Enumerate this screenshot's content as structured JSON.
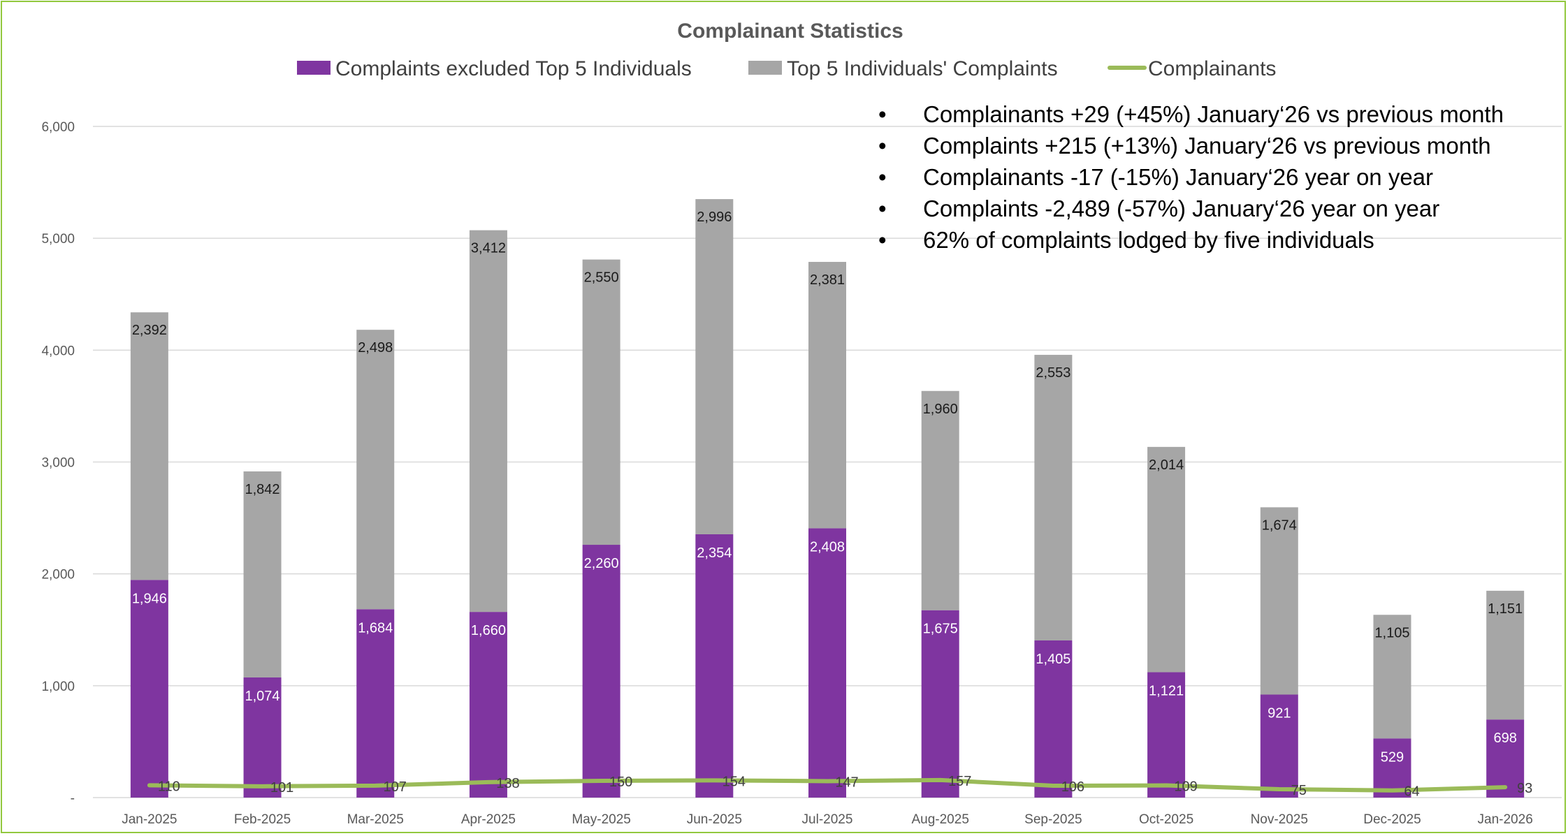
{
  "colors": {
    "excluded": "#7f35a0",
    "top5": "#a6a6a6",
    "complainants": "#9bbb59",
    "grid": "#d9d9d9",
    "frame": "#92c83e"
  },
  "chart_data": {
    "type": "bar",
    "stacked": true,
    "title": "Complainant Statistics",
    "categories": [
      "Jan-2025",
      "Feb-2025",
      "Mar-2025",
      "Apr-2025",
      "May-2025",
      "Jun-2025",
      "Jul-2025",
      "Aug-2025",
      "Sep-2025",
      "Oct-2025",
      "Nov-2025",
      "Dec-2025",
      "Jan-2026"
    ],
    "series": [
      {
        "name": "Complaints excluded Top 5 Individuals",
        "type": "bar",
        "values": [
          1946,
          1074,
          1684,
          1660,
          2260,
          2354,
          2408,
          1675,
          1405,
          1121,
          921,
          529,
          698
        ],
        "labels": [
          "1,946",
          "1,074",
          "1,684",
          "1,660",
          "2,260",
          "2,354",
          "2,408",
          "1,675",
          "1,405",
          "1,121",
          "921",
          "529",
          "698"
        ]
      },
      {
        "name": "Top 5 Individuals' Complaints",
        "type": "bar",
        "values": [
          2392,
          1842,
          2498,
          3412,
          2550,
          2996,
          2381,
          1960,
          2553,
          2014,
          1674,
          1105,
          1151
        ],
        "labels": [
          "2,392",
          "1,842",
          "2,498",
          "3,412",
          "2,550",
          "2,996",
          "2,381",
          "1,960",
          "2,553",
          "2,014",
          "1,674",
          "1,105",
          "1,151"
        ]
      },
      {
        "name": "Complainants",
        "type": "line",
        "values": [
          110,
          101,
          107,
          138,
          150,
          154,
          147,
          157,
          106,
          109,
          75,
          64,
          93
        ],
        "labels": [
          "110",
          "101",
          "107",
          "138",
          "150",
          "154",
          "147",
          "157",
          "106",
          "109",
          "75",
          "64",
          "93"
        ]
      }
    ],
    "ylim": [
      0,
      6000
    ],
    "yticks": [
      0,
      1000,
      2000,
      3000,
      4000,
      5000,
      6000
    ],
    "ytick_labels": [
      "-",
      "1,000",
      "2,000",
      "3,000",
      "4,000",
      "5,000",
      "6,000"
    ],
    "grid": true,
    "legend": "top-center",
    "annotations": [
      "Complainants +29 (+45%) January‘26 vs previous month",
      "Complaints +215 (+13%) January‘26 vs previous month",
      "Complainants -17 (-15%) January‘26 year on year",
      "Complaints -2,489 (-57%) January‘26 year on year",
      "62% of complaints lodged by five individuals"
    ],
    "annotation_bullet": "•"
  }
}
